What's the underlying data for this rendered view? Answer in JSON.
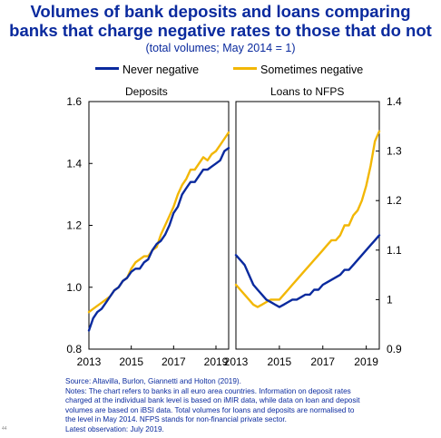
{
  "title_line1": "Volumes of bank deposits and loans comparing",
  "title_line2": "banks that charge negative rates to those that do not",
  "subtitle": "(total volumes; May 2014 = 1)",
  "legend": [
    {
      "label": "Never negative",
      "color": "#0a2a9e"
    },
    {
      "label": "Sometimes negative",
      "color": "#f2b705"
    }
  ],
  "notes": [
    "Source: Altavilla, Burlon, Giannetti and Holton (2019).",
    "Notes: The chart refers to banks in all euro area countries.  Information on deposit rates",
    "charged at the individual bank level is based on iMIR data, while data on loan and deposit",
    "volumes are based on iBSI data. Total volumes for loans and deposits are normalised to",
    "the level in May 2014. NFPS stands for non-financial private sector.",
    "Latest observation: July 2019."
  ],
  "page_mark": "44",
  "chart_data": [
    {
      "type": "line",
      "panel_label": "Deposits",
      "ylim": [
        0.8,
        1.6
      ],
      "yticks": [
        0.8,
        1.0,
        1.2,
        1.4,
        1.6
      ],
      "yticklabels": [
        "0.8",
        "1.0",
        "1.2",
        "1.4",
        "1.6"
      ],
      "xlim": [
        2013.0,
        2019.6
      ],
      "xticks": [
        2013,
        2015,
        2017,
        2019
      ],
      "xticklabels": [
        "2013",
        "2015",
        "2017",
        "2019"
      ],
      "series": [
        {
          "name": "Never negative",
          "color": "#0a2a9e",
          "x": [
            2013.0,
            2013.2,
            2013.4,
            2013.6,
            2013.8,
            2014.0,
            2014.2,
            2014.4,
            2014.6,
            2014.8,
            2015.0,
            2015.2,
            2015.4,
            2015.6,
            2015.8,
            2016.0,
            2016.2,
            2016.4,
            2016.6,
            2016.8,
            2017.0,
            2017.2,
            2017.4,
            2017.6,
            2017.8,
            2018.0,
            2018.2,
            2018.4,
            2018.6,
            2018.8,
            2019.0,
            2019.2,
            2019.4,
            2019.6
          ],
          "y": [
            0.86,
            0.9,
            0.92,
            0.93,
            0.95,
            0.97,
            0.99,
            1.0,
            1.02,
            1.03,
            1.05,
            1.06,
            1.06,
            1.08,
            1.09,
            1.12,
            1.14,
            1.15,
            1.17,
            1.2,
            1.24,
            1.26,
            1.3,
            1.32,
            1.34,
            1.34,
            1.36,
            1.38,
            1.38,
            1.39,
            1.4,
            1.41,
            1.44,
            1.45
          ]
        },
        {
          "name": "Sometimes negative",
          "color": "#f2b705",
          "x": [
            2013.0,
            2013.2,
            2013.4,
            2013.6,
            2013.8,
            2014.0,
            2014.2,
            2014.4,
            2014.6,
            2014.8,
            2015.0,
            2015.2,
            2015.4,
            2015.6,
            2015.8,
            2016.0,
            2016.2,
            2016.4,
            2016.6,
            2016.8,
            2017.0,
            2017.2,
            2017.4,
            2017.6,
            2017.8,
            2018.0,
            2018.2,
            2018.4,
            2018.6,
            2018.8,
            2019.0,
            2019.2,
            2019.4,
            2019.6
          ],
          "y": [
            0.92,
            0.93,
            0.94,
            0.95,
            0.96,
            0.97,
            0.99,
            1.0,
            1.02,
            1.03,
            1.06,
            1.08,
            1.09,
            1.1,
            1.1,
            1.12,
            1.13,
            1.17,
            1.2,
            1.23,
            1.26,
            1.3,
            1.33,
            1.35,
            1.38,
            1.38,
            1.4,
            1.42,
            1.41,
            1.43,
            1.44,
            1.46,
            1.48,
            1.5
          ]
        }
      ]
    },
    {
      "type": "line",
      "panel_label": "Loans to NFPS",
      "ylim": [
        0.9,
        1.4
      ],
      "yticks": [
        0.9,
        1.0,
        1.1,
        1.2,
        1.3,
        1.4
      ],
      "yticklabels": [
        "0.9",
        "1",
        "1.1",
        "1.2",
        "1.3",
        "1.4"
      ],
      "xlim": [
        2013.0,
        2019.6
      ],
      "xticks": [
        2013,
        2015,
        2017,
        2019
      ],
      "xticklabels": [
        "2013",
        "2015",
        "2017",
        "2019"
      ],
      "series": [
        {
          "name": "Never negative",
          "color": "#0a2a9e",
          "x": [
            2013.0,
            2013.2,
            2013.4,
            2013.6,
            2013.8,
            2014.0,
            2014.2,
            2014.4,
            2014.6,
            2014.8,
            2015.0,
            2015.2,
            2015.4,
            2015.6,
            2015.8,
            2016.0,
            2016.2,
            2016.4,
            2016.6,
            2016.8,
            2017.0,
            2017.2,
            2017.4,
            2017.6,
            2017.8,
            2018.0,
            2018.2,
            2018.4,
            2018.6,
            2018.8,
            2019.0,
            2019.2,
            2019.4,
            2019.6
          ],
          "y": [
            1.09,
            1.08,
            1.07,
            1.05,
            1.03,
            1.02,
            1.01,
            1.0,
            0.995,
            0.99,
            0.985,
            0.99,
            0.995,
            1.0,
            1.0,
            1.005,
            1.01,
            1.01,
            1.02,
            1.02,
            1.03,
            1.035,
            1.04,
            1.045,
            1.05,
            1.06,
            1.06,
            1.07,
            1.08,
            1.09,
            1.1,
            1.11,
            1.12,
            1.13
          ]
        },
        {
          "name": "Sometimes negative",
          "color": "#f2b705",
          "x": [
            2013.0,
            2013.2,
            2013.4,
            2013.6,
            2013.8,
            2014.0,
            2014.2,
            2014.4,
            2014.6,
            2014.8,
            2015.0,
            2015.2,
            2015.4,
            2015.6,
            2015.8,
            2016.0,
            2016.2,
            2016.4,
            2016.6,
            2016.8,
            2017.0,
            2017.2,
            2017.4,
            2017.6,
            2017.8,
            2018.0,
            2018.2,
            2018.4,
            2018.6,
            2018.8,
            2019.0,
            2019.2,
            2019.4,
            2019.6
          ],
          "y": [
            1.03,
            1.02,
            1.01,
            1.0,
            0.99,
            0.985,
            0.99,
            0.995,
            1.0,
            1.0,
            1.0,
            1.01,
            1.02,
            1.03,
            1.04,
            1.05,
            1.06,
            1.07,
            1.08,
            1.09,
            1.1,
            1.11,
            1.12,
            1.12,
            1.13,
            1.15,
            1.15,
            1.17,
            1.18,
            1.2,
            1.23,
            1.27,
            1.32,
            1.34
          ]
        }
      ]
    }
  ]
}
